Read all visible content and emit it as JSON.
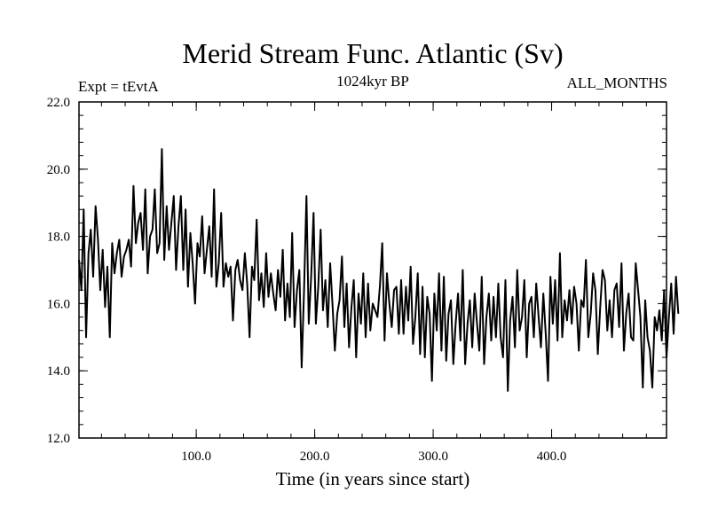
{
  "chart_data": {
    "type": "line",
    "title": "Merid Stream Func. Atlantic (Sv)",
    "subtitle_left": "Expt = tEvtA",
    "subtitle_center": "1024kyr BP",
    "subtitle_right": "ALL_MONTHS",
    "xlabel": "Time (in years since start)",
    "ylabel": "",
    "xlim": [
      1,
      497
    ],
    "ylim": [
      12.0,
      22.0
    ],
    "x_ticks": [
      100,
      200,
      300,
      400
    ],
    "x_tick_labels": [
      "100.0",
      "200.0",
      "300.0",
      "400.0"
    ],
    "y_ticks": [
      12,
      14,
      16,
      18,
      20,
      22
    ],
    "y_tick_labels": [
      "12.0",
      "14.0",
      "16.0",
      "18.0",
      "20.0",
      "22.0"
    ],
    "x_minor_step": 20,
    "y_minor_step": 0.4,
    "series": [
      {
        "name": "Merid Stream Func. Atlantic",
        "x_start": 1,
        "x_step": 2,
        "values": [
          17.3,
          16.4,
          18.8,
          15.0,
          17.5,
          18.2,
          16.8,
          18.9,
          17.9,
          16.4,
          17.6,
          15.9,
          17.1,
          15.0,
          17.8,
          16.9,
          17.5,
          17.9,
          16.8,
          17.4,
          17.6,
          17.9,
          17.1,
          19.5,
          17.8,
          18.4,
          18.7,
          17.6,
          19.4,
          16.9,
          18.0,
          18.2,
          19.4,
          17.5,
          17.8,
          20.6,
          17.3,
          18.9,
          17.6,
          18.4,
          19.2,
          17.0,
          18.3,
          19.2,
          17.0,
          18.8,
          16.5,
          18.1,
          17.2,
          16.0,
          17.8,
          17.4,
          18.6,
          16.9,
          17.6,
          18.3,
          16.8,
          19.4,
          16.5,
          17.2,
          18.7,
          16.5,
          17.2,
          16.8,
          17.1,
          15.5,
          17.0,
          17.3,
          16.7,
          16.4,
          17.5,
          16.6,
          15.0,
          17.1,
          16.7,
          18.5,
          16.1,
          16.9,
          15.9,
          17.5,
          16.2,
          16.9,
          16.3,
          15.8,
          17.0,
          16.2,
          17.6,
          15.5,
          16.6,
          15.6,
          18.1,
          15.3,
          16.4,
          17.0,
          14.1,
          16.4,
          19.2,
          15.4,
          16.8,
          18.7,
          15.4,
          16.5,
          18.2,
          15.8,
          16.7,
          15.3,
          17.2,
          16.0,
          14.6,
          15.7,
          16.1,
          17.4,
          15.3,
          16.6,
          14.7,
          15.9,
          16.7,
          14.4,
          16.3,
          15.4,
          16.9,
          15.0,
          16.6,
          15.2,
          16.0,
          15.8,
          15.6,
          16.5,
          17.8,
          14.9,
          16.9,
          16.0,
          15.3,
          16.4,
          16.5,
          15.1,
          16.7,
          15.1,
          16.5,
          15.5,
          17.1,
          14.8,
          15.6,
          16.9,
          14.5,
          16.5,
          14.4,
          16.2,
          15.7,
          13.7,
          16.3,
          15.2,
          16.9,
          14.6,
          16.8,
          14.3,
          15.7,
          16.1,
          14.2,
          15.4,
          16.3,
          14.9,
          17.0,
          14.2,
          15.4,
          16.1,
          14.7,
          16.3,
          15.4,
          14.6,
          16.8,
          14.2,
          15.6,
          16.3,
          14.9,
          16.2,
          15.0,
          16.6,
          15.0,
          14.4,
          16.7,
          13.4,
          15.5,
          16.2,
          14.7,
          17.0,
          15.2,
          15.6,
          16.7,
          14.4,
          16.0,
          16.2,
          15.0,
          16.6,
          15.6,
          14.7,
          16.3,
          15.1,
          13.7,
          16.8,
          15.4,
          16.7,
          14.9,
          17.5,
          15.0,
          16.1,
          15.5,
          16.4,
          15.4,
          16.5,
          16.0,
          14.6,
          16.1,
          15.9,
          17.3,
          15.0,
          15.7,
          16.9,
          16.4,
          14.5,
          15.9,
          17.0,
          16.7,
          15.2,
          16.1,
          15.0,
          16.4,
          16.6,
          15.3,
          17.2,
          14.6,
          15.7,
          16.3,
          15.0,
          14.9,
          17.2,
          16.4,
          15.6,
          13.5,
          16.1,
          15.0,
          14.6,
          13.5,
          15.6,
          15.2,
          15.8,
          14.9,
          16.4,
          14.4,
          15.6,
          16.6,
          15.1,
          16.8,
          15.7
        ]
      }
    ]
  }
}
